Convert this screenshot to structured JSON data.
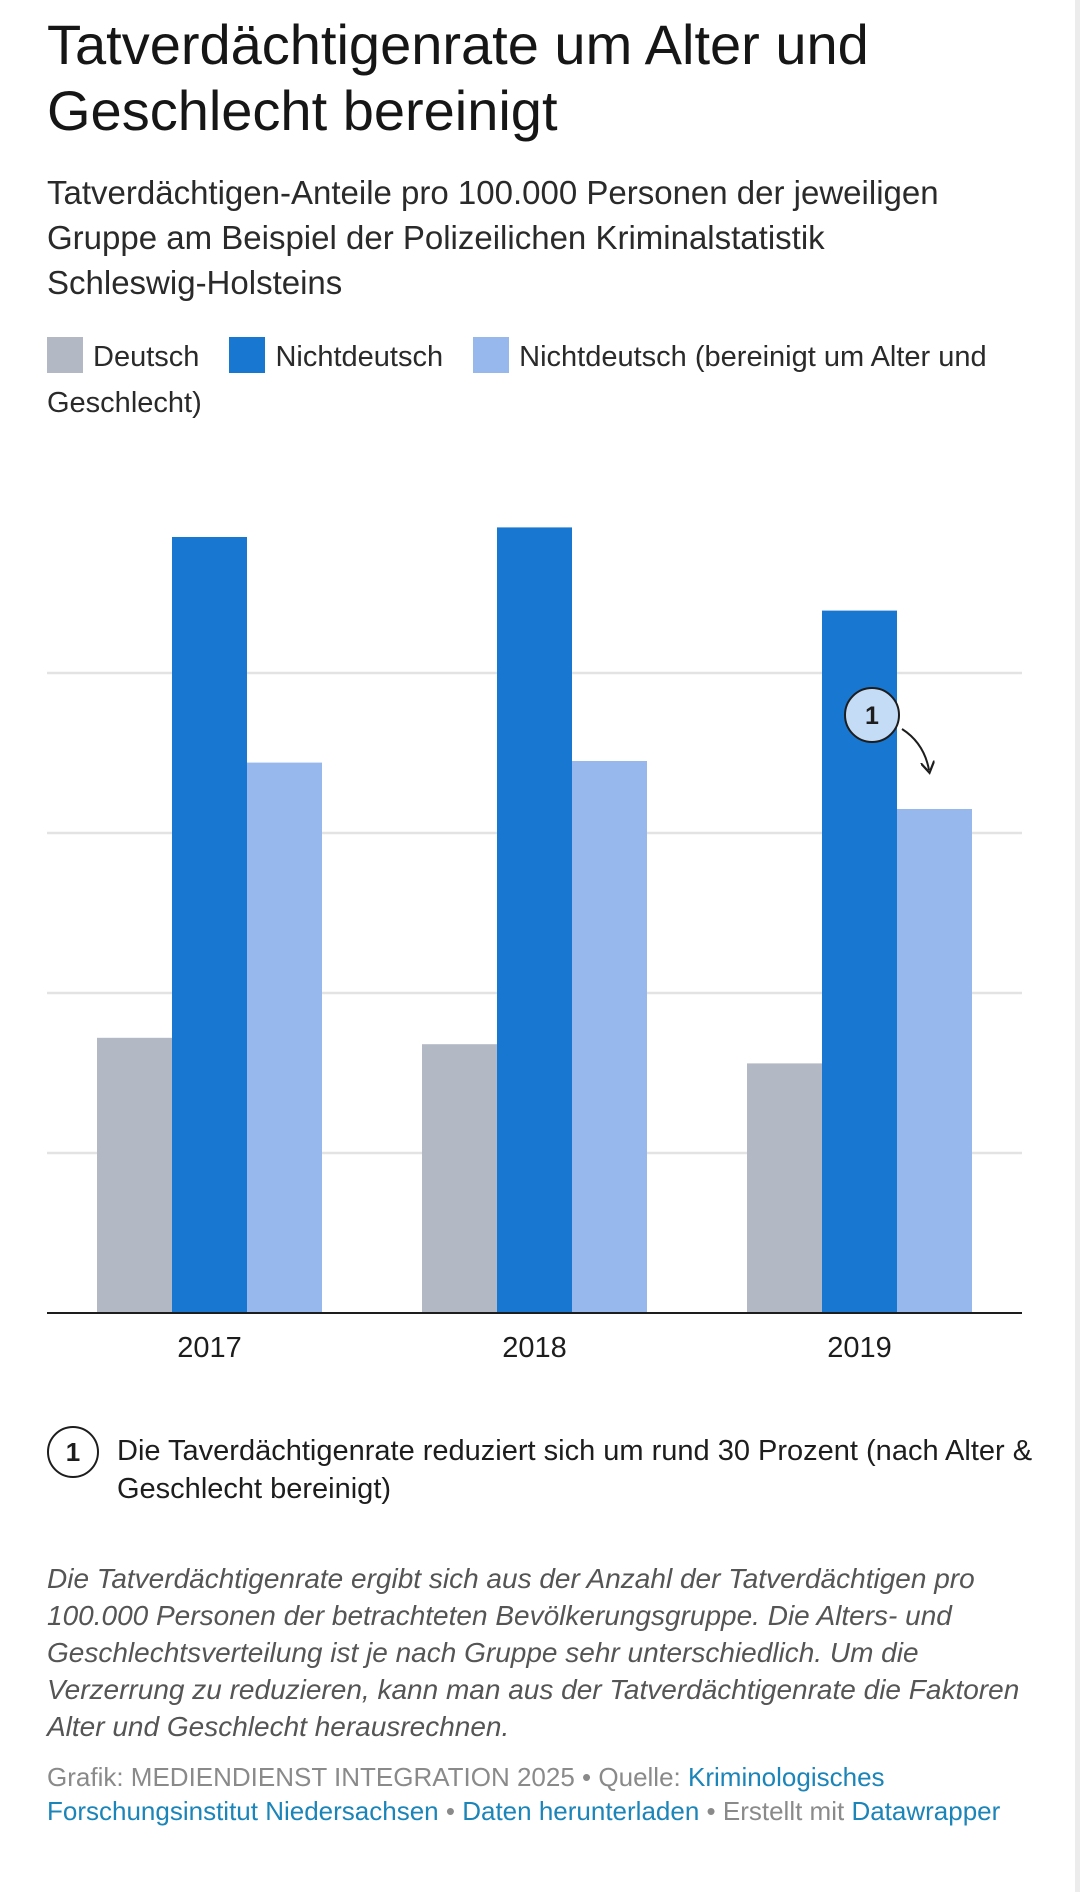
{
  "title": "Tatverdächtigenrate um Alter und Geschlecht bereinigt",
  "subtitle": "Tatverdächtigen-Anteile pro 100.000 Personen der jeweiligen Gruppe am Beispiel der Polizeilichen Kriminalstatistik Schleswig-Holsteins",
  "colors": {
    "deutsch": "#b3b8c5",
    "nichtdeutsch": "#1877d0",
    "nichtdeutsch_bereinigt": "#96b8ec",
    "gridline": "#e3e3e3",
    "axis": "#1d1d1d",
    "annotation_fill": "#c4dcf6"
  },
  "legend": [
    {
      "label": "Deutsch",
      "color": "#b3b8c5"
    },
    {
      "label": "Nichtdeutsch",
      "color": "#1877d0"
    },
    {
      "label": "Nichtdeutsch (bereinigt um Alter und Geschlecht)",
      "color": "#96b8ec"
    }
  ],
  "chart_data": {
    "type": "bar",
    "categories": [
      "2017",
      "2018",
      "2019"
    ],
    "series": [
      {
        "name": "Deutsch",
        "values": [
          1720,
          1680,
          1560
        ]
      },
      {
        "name": "Nichtdeutsch",
        "values": [
          4850,
          4910,
          4390
        ]
      },
      {
        "name": "Nichtdeutsch (bereinigt um Alter und Geschlecht)",
        "values": [
          3440,
          3450,
          3150
        ]
      }
    ],
    "ylim": [
      0,
      5000
    ],
    "grid": true,
    "legend_position": "top",
    "annotations": [
      {
        "marker": "1",
        "category": "2019",
        "series": "Nichtdeutsch (bereinigt um Alter und Geschlecht)"
      }
    ]
  },
  "note": {
    "marker": "1",
    "text": "Die Taverdächtigenrate reduziert sich um rund 30 Prozent (nach Alter & Geschlecht bereinigt)"
  },
  "description": "Die Tatverdächtigenrate ergibt sich aus der Anzahl der Tatverdächtigen pro 100.000 Personen der betrachteten Bevölkerungsgruppe. Die Alters- und Geschlechtsverteilung ist je nach Gruppe sehr unterschiedlich. Um die Verzerrung zu reduzieren, kann man aus der Tatverdächtigenrate die Faktoren Alter und Geschlecht herausrechnen.",
  "footer": {
    "credit": "Grafik: MEDIENDIENST INTEGRATION 2025",
    "source_label": "Quelle:",
    "source_link": "Kriminologisches Forschungsinstitut Niedersachsen",
    "download_link": "Daten herunterladen",
    "made_with": "Erstellt mit",
    "tool_link": "Datawrapper",
    "separator": "•"
  }
}
